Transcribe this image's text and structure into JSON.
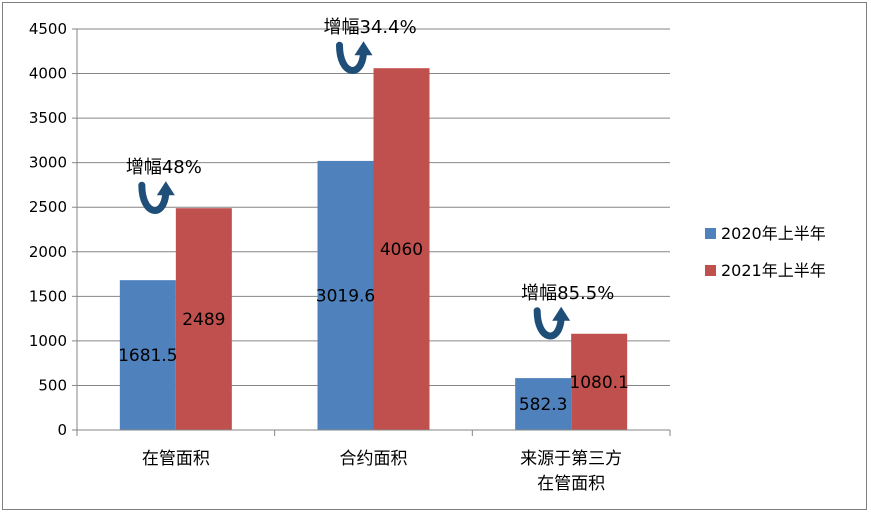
{
  "chart_data": {
    "type": "bar",
    "categories": [
      [
        "在管面积"
      ],
      [
        "合约面积"
      ],
      [
        "来源于第三方",
        "在管面积"
      ]
    ],
    "series": [
      {
        "name": "2020年上半年",
        "color": "#4f81bd",
        "values": [
          1681.5,
          3019.6,
          582.3
        ],
        "labels": [
          "1681.5",
          "3019.6",
          "582.3"
        ]
      },
      {
        "name": "2021年上半年",
        "color": "#c0504d",
        "values": [
          2489,
          4060,
          1080.1
        ],
        "labels": [
          "2489",
          "4060",
          "1080.1"
        ]
      }
    ],
    "annotations": [
      "增幅48%",
      "增幅34.4%",
      "增幅85.5%"
    ],
    "ylim": [
      0,
      4500
    ],
    "yticks": [
      0,
      500,
      1000,
      1500,
      2000,
      2500,
      3000,
      3500,
      4000,
      4500
    ],
    "grid": true,
    "legend_position": "right",
    "arrow_color": "#1f4e79"
  }
}
